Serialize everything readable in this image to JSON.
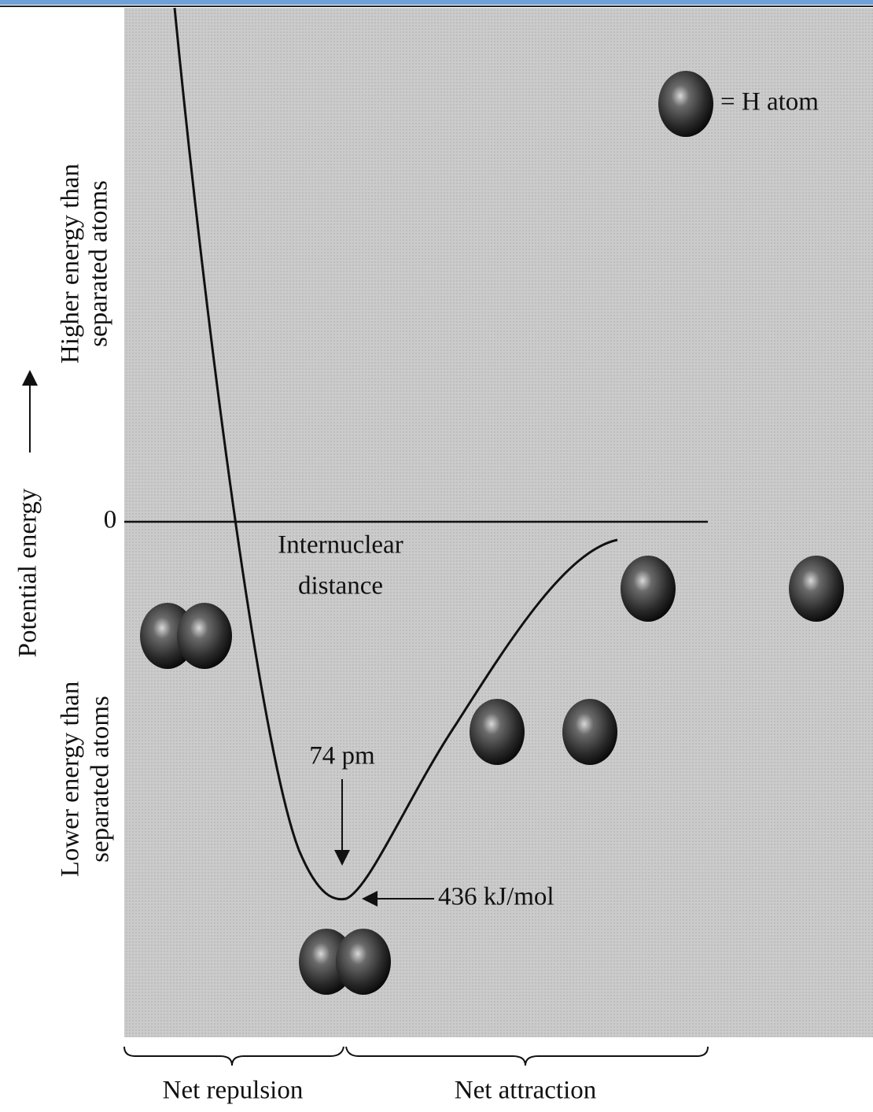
{
  "legend": {
    "label": "= H atom"
  },
  "y_axis": {
    "label": "Potential energy",
    "upper": [
      "Higher energy than",
      "separated atoms"
    ],
    "lower": [
      "Lower energy than",
      "separated atoms"
    ],
    "zero": "0"
  },
  "x_axis": {
    "label": [
      "Internuclear",
      "distance"
    ]
  },
  "annotations": {
    "bond_length": "74 pm",
    "bond_energy": "436 kJ/mol"
  },
  "regions": [
    "Net repulsion",
    "Net attraction"
  ]
}
